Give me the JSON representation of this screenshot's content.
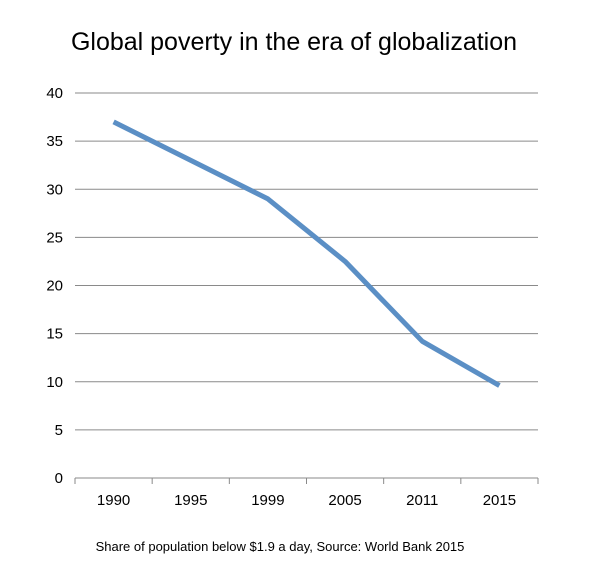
{
  "chart_data": {
    "type": "line",
    "title": "Global poverty in the era of globalization",
    "caption": "Share of population below $1.9 a day, Source: World Bank 2015",
    "categories": [
      "1990",
      "1995",
      "1999",
      "2005",
      "2011",
      "2015"
    ],
    "series": [
      {
        "values": [
          37,
          33,
          29,
          22.5,
          14.2,
          9.6
        ],
        "color": "#5b8fc5"
      }
    ],
    "ylim": [
      0,
      40
    ],
    "yticks": [
      0,
      5,
      10,
      15,
      20,
      25,
      30,
      35,
      40
    ],
    "grid": true,
    "legend": "none",
    "colors": {
      "line": "#5b8fc5",
      "grid": "#8a8a8a"
    }
  }
}
